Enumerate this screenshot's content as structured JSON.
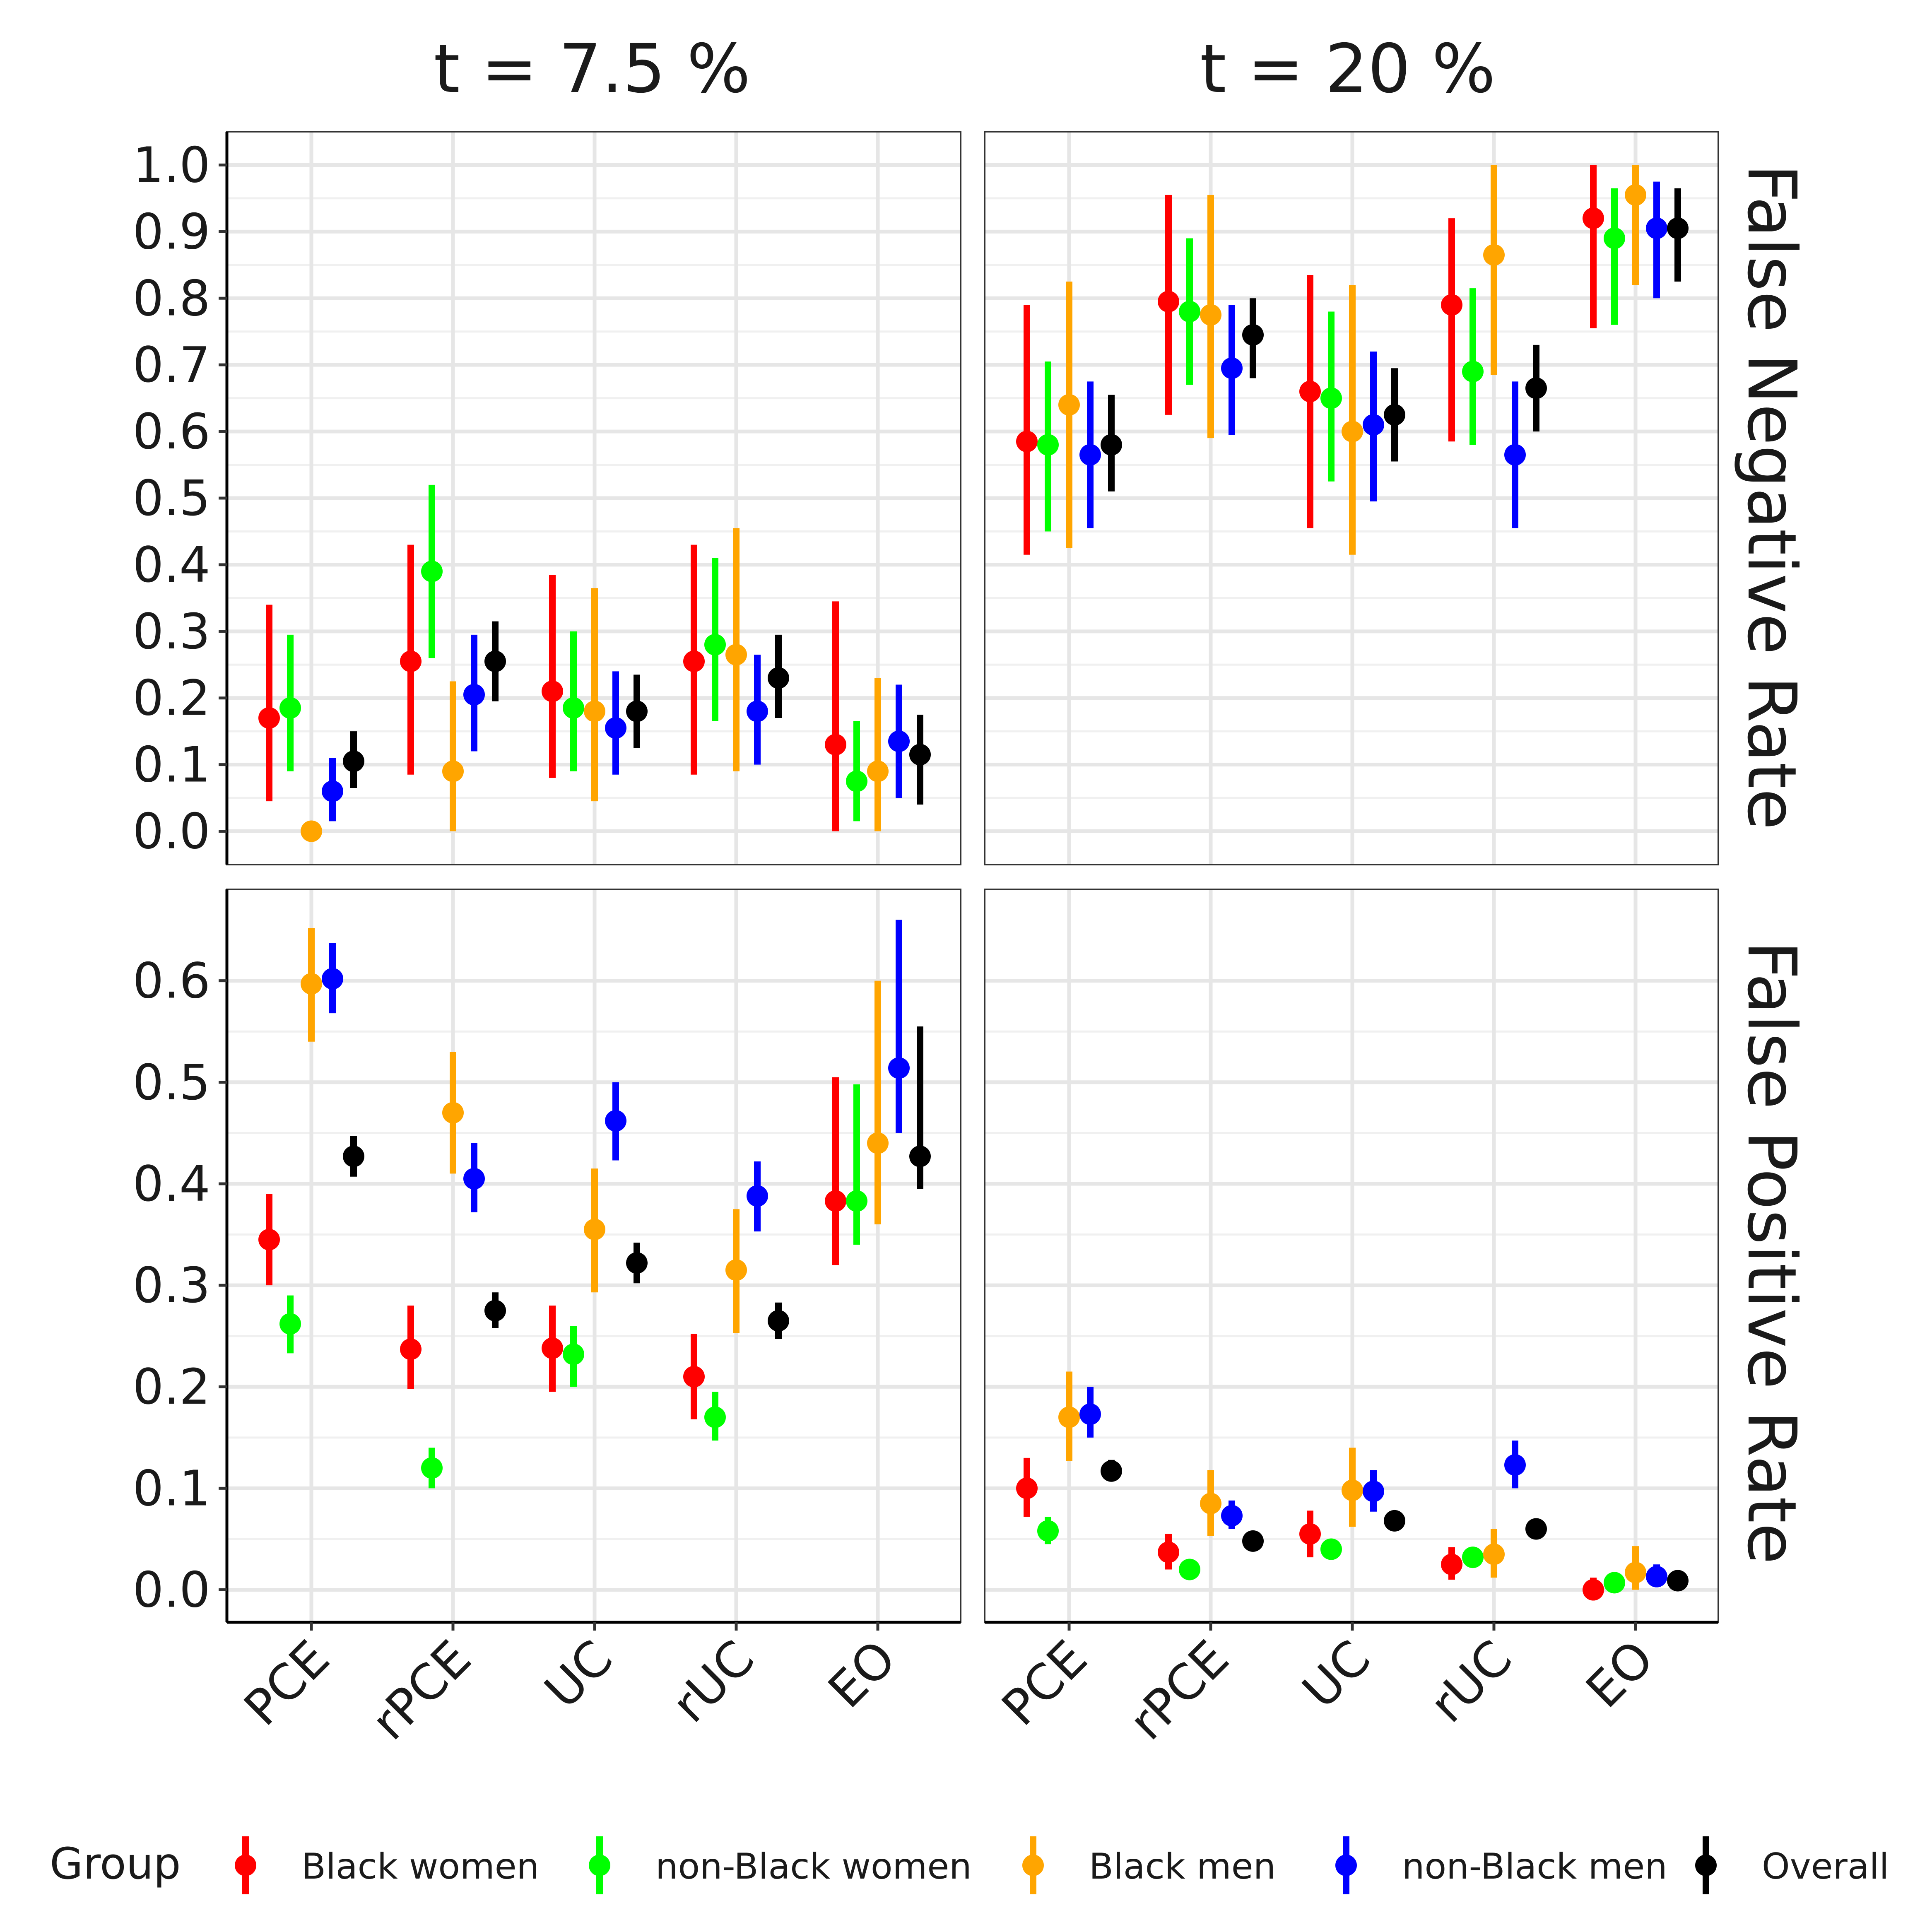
{
  "chart_data": {
    "type": "scatter",
    "chart_style": "faceted point-range (error bars)",
    "grid": true,
    "legend_position": "bottom",
    "column_strips": [
      "t = 7.5 %",
      "t = 20 %"
    ],
    "row_strips": [
      "False Negative Rate",
      "False Positive Rate"
    ],
    "categories": [
      "PCE",
      "rPCE",
      "UC",
      "rUC",
      "EO"
    ],
    "legend": {
      "title": "Group",
      "entries": [
        {
          "name": "Black women",
          "color": "#ff0000"
        },
        {
          "name": "non-Black women",
          "color": "#00ff00"
        },
        {
          "name": "Black men",
          "color": "#ffa500"
        },
        {
          "name": "non-Black men",
          "color": "#0000ff"
        },
        {
          "name": "Overall",
          "color": "#000000"
        }
      ]
    },
    "rows": [
      {
        "ylim": [
          -0.05,
          1.05
        ],
        "yticks": [
          "0.0",
          "0.1",
          "0.2",
          "0.3",
          "0.4",
          "0.5",
          "0.6",
          "0.7",
          "0.8",
          "0.9",
          "1.0"
        ],
        "panels": [
          {
            "series": [
              {
                "name": "Black women",
                "points": [
                  [
                    0.17,
                    0.045,
                    0.34
                  ],
                  [
                    0.255,
                    0.085,
                    0.43
                  ],
                  [
                    0.21,
                    0.08,
                    0.385
                  ],
                  [
                    0.255,
                    0.085,
                    0.43
                  ],
                  [
                    0.13,
                    0.0,
                    0.345
                  ]
                ]
              },
              {
                "name": "non-Black women",
                "points": [
                  [
                    0.185,
                    0.09,
                    0.295
                  ],
                  [
                    0.39,
                    0.26,
                    0.52
                  ],
                  [
                    0.185,
                    0.09,
                    0.3
                  ],
                  [
                    0.28,
                    0.165,
                    0.41
                  ],
                  [
                    0.075,
                    0.015,
                    0.165
                  ]
                ]
              },
              {
                "name": "Black men",
                "points": [
                  [
                    0.0,
                    0.0,
                    0.0
                  ],
                  [
                    0.09,
                    0.0,
                    0.225
                  ],
                  [
                    0.18,
                    0.045,
                    0.365
                  ],
                  [
                    0.265,
                    0.09,
                    0.455
                  ],
                  [
                    0.09,
                    0.0,
                    0.23
                  ]
                ]
              },
              {
                "name": "non-Black men",
                "points": [
                  [
                    0.06,
                    0.015,
                    0.11
                  ],
                  [
                    0.205,
                    0.12,
                    0.295
                  ],
                  [
                    0.155,
                    0.085,
                    0.24
                  ],
                  [
                    0.18,
                    0.1,
                    0.265
                  ],
                  [
                    0.135,
                    0.05,
                    0.22
                  ]
                ]
              },
              {
                "name": "Overall",
                "points": [
                  [
                    0.105,
                    0.065,
                    0.15
                  ],
                  [
                    0.255,
                    0.195,
                    0.315
                  ],
                  [
                    0.18,
                    0.125,
                    0.235
                  ],
                  [
                    0.23,
                    0.17,
                    0.295
                  ],
                  [
                    0.115,
                    0.04,
                    0.175
                  ]
                ]
              }
            ]
          },
          {
            "series": [
              {
                "name": "Black women",
                "points": [
                  [
                    0.585,
                    0.415,
                    0.79
                  ],
                  [
                    0.795,
                    0.625,
                    0.955
                  ],
                  [
                    0.66,
                    0.455,
                    0.835
                  ],
                  [
                    0.79,
                    0.585,
                    0.92
                  ],
                  [
                    0.92,
                    0.755,
                    1.0
                  ]
                ]
              },
              {
                "name": "non-Black women",
                "points": [
                  [
                    0.58,
                    0.45,
                    0.705
                  ],
                  [
                    0.78,
                    0.67,
                    0.89
                  ],
                  [
                    0.65,
                    0.525,
                    0.78
                  ],
                  [
                    0.69,
                    0.58,
                    0.815
                  ],
                  [
                    0.89,
                    0.76,
                    0.965
                  ]
                ]
              },
              {
                "name": "Black men",
                "points": [
                  [
                    0.64,
                    0.425,
                    0.825
                  ],
                  [
                    0.775,
                    0.59,
                    0.955
                  ],
                  [
                    0.6,
                    0.415,
                    0.82
                  ],
                  [
                    0.865,
                    0.685,
                    1.0
                  ],
                  [
                    0.955,
                    0.82,
                    1.0
                  ]
                ]
              },
              {
                "name": "non-Black men",
                "points": [
                  [
                    0.565,
                    0.455,
                    0.675
                  ],
                  [
                    0.695,
                    0.595,
                    0.79
                  ],
                  [
                    0.61,
                    0.495,
                    0.72
                  ],
                  [
                    0.565,
                    0.455,
                    0.675
                  ],
                  [
                    0.905,
                    0.8,
                    0.975
                  ]
                ]
              },
              {
                "name": "Overall",
                "points": [
                  [
                    0.58,
                    0.51,
                    0.655
                  ],
                  [
                    0.745,
                    0.68,
                    0.8
                  ],
                  [
                    0.625,
                    0.555,
                    0.695
                  ],
                  [
                    0.665,
                    0.6,
                    0.73
                  ],
                  [
                    0.905,
                    0.825,
                    0.965
                  ]
                ]
              }
            ]
          }
        ]
      },
      {
        "ylim": [
          -0.032,
          0.69
        ],
        "yticks": [
          "0.0",
          "0.1",
          "0.2",
          "0.3",
          "0.4",
          "0.5",
          "0.6"
        ],
        "panels": [
          {
            "series": [
              {
                "name": "Black women",
                "points": [
                  [
                    0.345,
                    0.3,
                    0.39
                  ],
                  [
                    0.237,
                    0.198,
                    0.28
                  ],
                  [
                    0.238,
                    0.195,
                    0.28
                  ],
                  [
                    0.21,
                    0.168,
                    0.252
                  ],
                  [
                    0.383,
                    0.32,
                    0.505
                  ]
                ]
              },
              {
                "name": "non-Black women",
                "points": [
                  [
                    0.262,
                    0.233,
                    0.29
                  ],
                  [
                    0.12,
                    0.1,
                    0.14
                  ],
                  [
                    0.232,
                    0.2,
                    0.26
                  ],
                  [
                    0.17,
                    0.147,
                    0.195
                  ],
                  [
                    0.383,
                    0.34,
                    0.498
                  ]
                ]
              },
              {
                "name": "Black men",
                "points": [
                  [
                    0.597,
                    0.54,
                    0.652
                  ],
                  [
                    0.47,
                    0.41,
                    0.53
                  ],
                  [
                    0.355,
                    0.293,
                    0.415
                  ],
                  [
                    0.315,
                    0.253,
                    0.375
                  ],
                  [
                    0.44,
                    0.36,
                    0.6
                  ]
                ]
              },
              {
                "name": "non-Black men",
                "points": [
                  [
                    0.602,
                    0.568,
                    0.637
                  ],
                  [
                    0.405,
                    0.372,
                    0.44
                  ],
                  [
                    0.462,
                    0.423,
                    0.5
                  ],
                  [
                    0.388,
                    0.353,
                    0.422
                  ],
                  [
                    0.514,
                    0.45,
                    0.66
                  ]
                ]
              },
              {
                "name": "Overall",
                "points": [
                  [
                    0.427,
                    0.407,
                    0.447
                  ],
                  [
                    0.275,
                    0.258,
                    0.293
                  ],
                  [
                    0.322,
                    0.302,
                    0.342
                  ],
                  [
                    0.265,
                    0.247,
                    0.283
                  ],
                  [
                    0.427,
                    0.395,
                    0.555
                  ]
                ]
              }
            ]
          },
          {
            "series": [
              {
                "name": "Black women",
                "points": [
                  [
                    0.1,
                    0.072,
                    0.13
                  ],
                  [
                    0.037,
                    0.02,
                    0.055
                  ],
                  [
                    0.055,
                    0.032,
                    0.078
                  ],
                  [
                    0.025,
                    0.01,
                    0.042
                  ],
                  [
                    0.0,
                    0.0,
                    0.012
                  ]
                ]
              },
              {
                "name": "non-Black women",
                "points": [
                  [
                    0.058,
                    0.045,
                    0.072
                  ],
                  [
                    0.02,
                    0.012,
                    0.028
                  ],
                  [
                    0.04,
                    0.03,
                    0.05
                  ],
                  [
                    0.032,
                    0.024,
                    0.04
                  ],
                  [
                    0.007,
                    0.002,
                    0.012
                  ]
                ]
              },
              {
                "name": "Black men",
                "points": [
                  [
                    0.17,
                    0.127,
                    0.215
                  ],
                  [
                    0.085,
                    0.053,
                    0.118
                  ],
                  [
                    0.098,
                    0.062,
                    0.14
                  ],
                  [
                    0.035,
                    0.012,
                    0.06
                  ],
                  [
                    0.017,
                    0.0,
                    0.043
                  ]
                ]
              },
              {
                "name": "non-Black men",
                "points": [
                  [
                    0.173,
                    0.15,
                    0.2
                  ],
                  [
                    0.073,
                    0.06,
                    0.088
                  ],
                  [
                    0.097,
                    0.077,
                    0.118
                  ],
                  [
                    0.123,
                    0.1,
                    0.147
                  ],
                  [
                    0.013,
                    0.005,
                    0.025
                  ]
                ]
              },
              {
                "name": "Overall",
                "points": [
                  [
                    0.117,
                    0.107,
                    0.128
                  ],
                  [
                    0.048,
                    0.042,
                    0.055
                  ],
                  [
                    0.068,
                    0.06,
                    0.077
                  ],
                  [
                    0.06,
                    0.053,
                    0.068
                  ],
                  [
                    0.009,
                    0.004,
                    0.014
                  ]
                ]
              }
            ]
          }
        ]
      }
    ]
  }
}
